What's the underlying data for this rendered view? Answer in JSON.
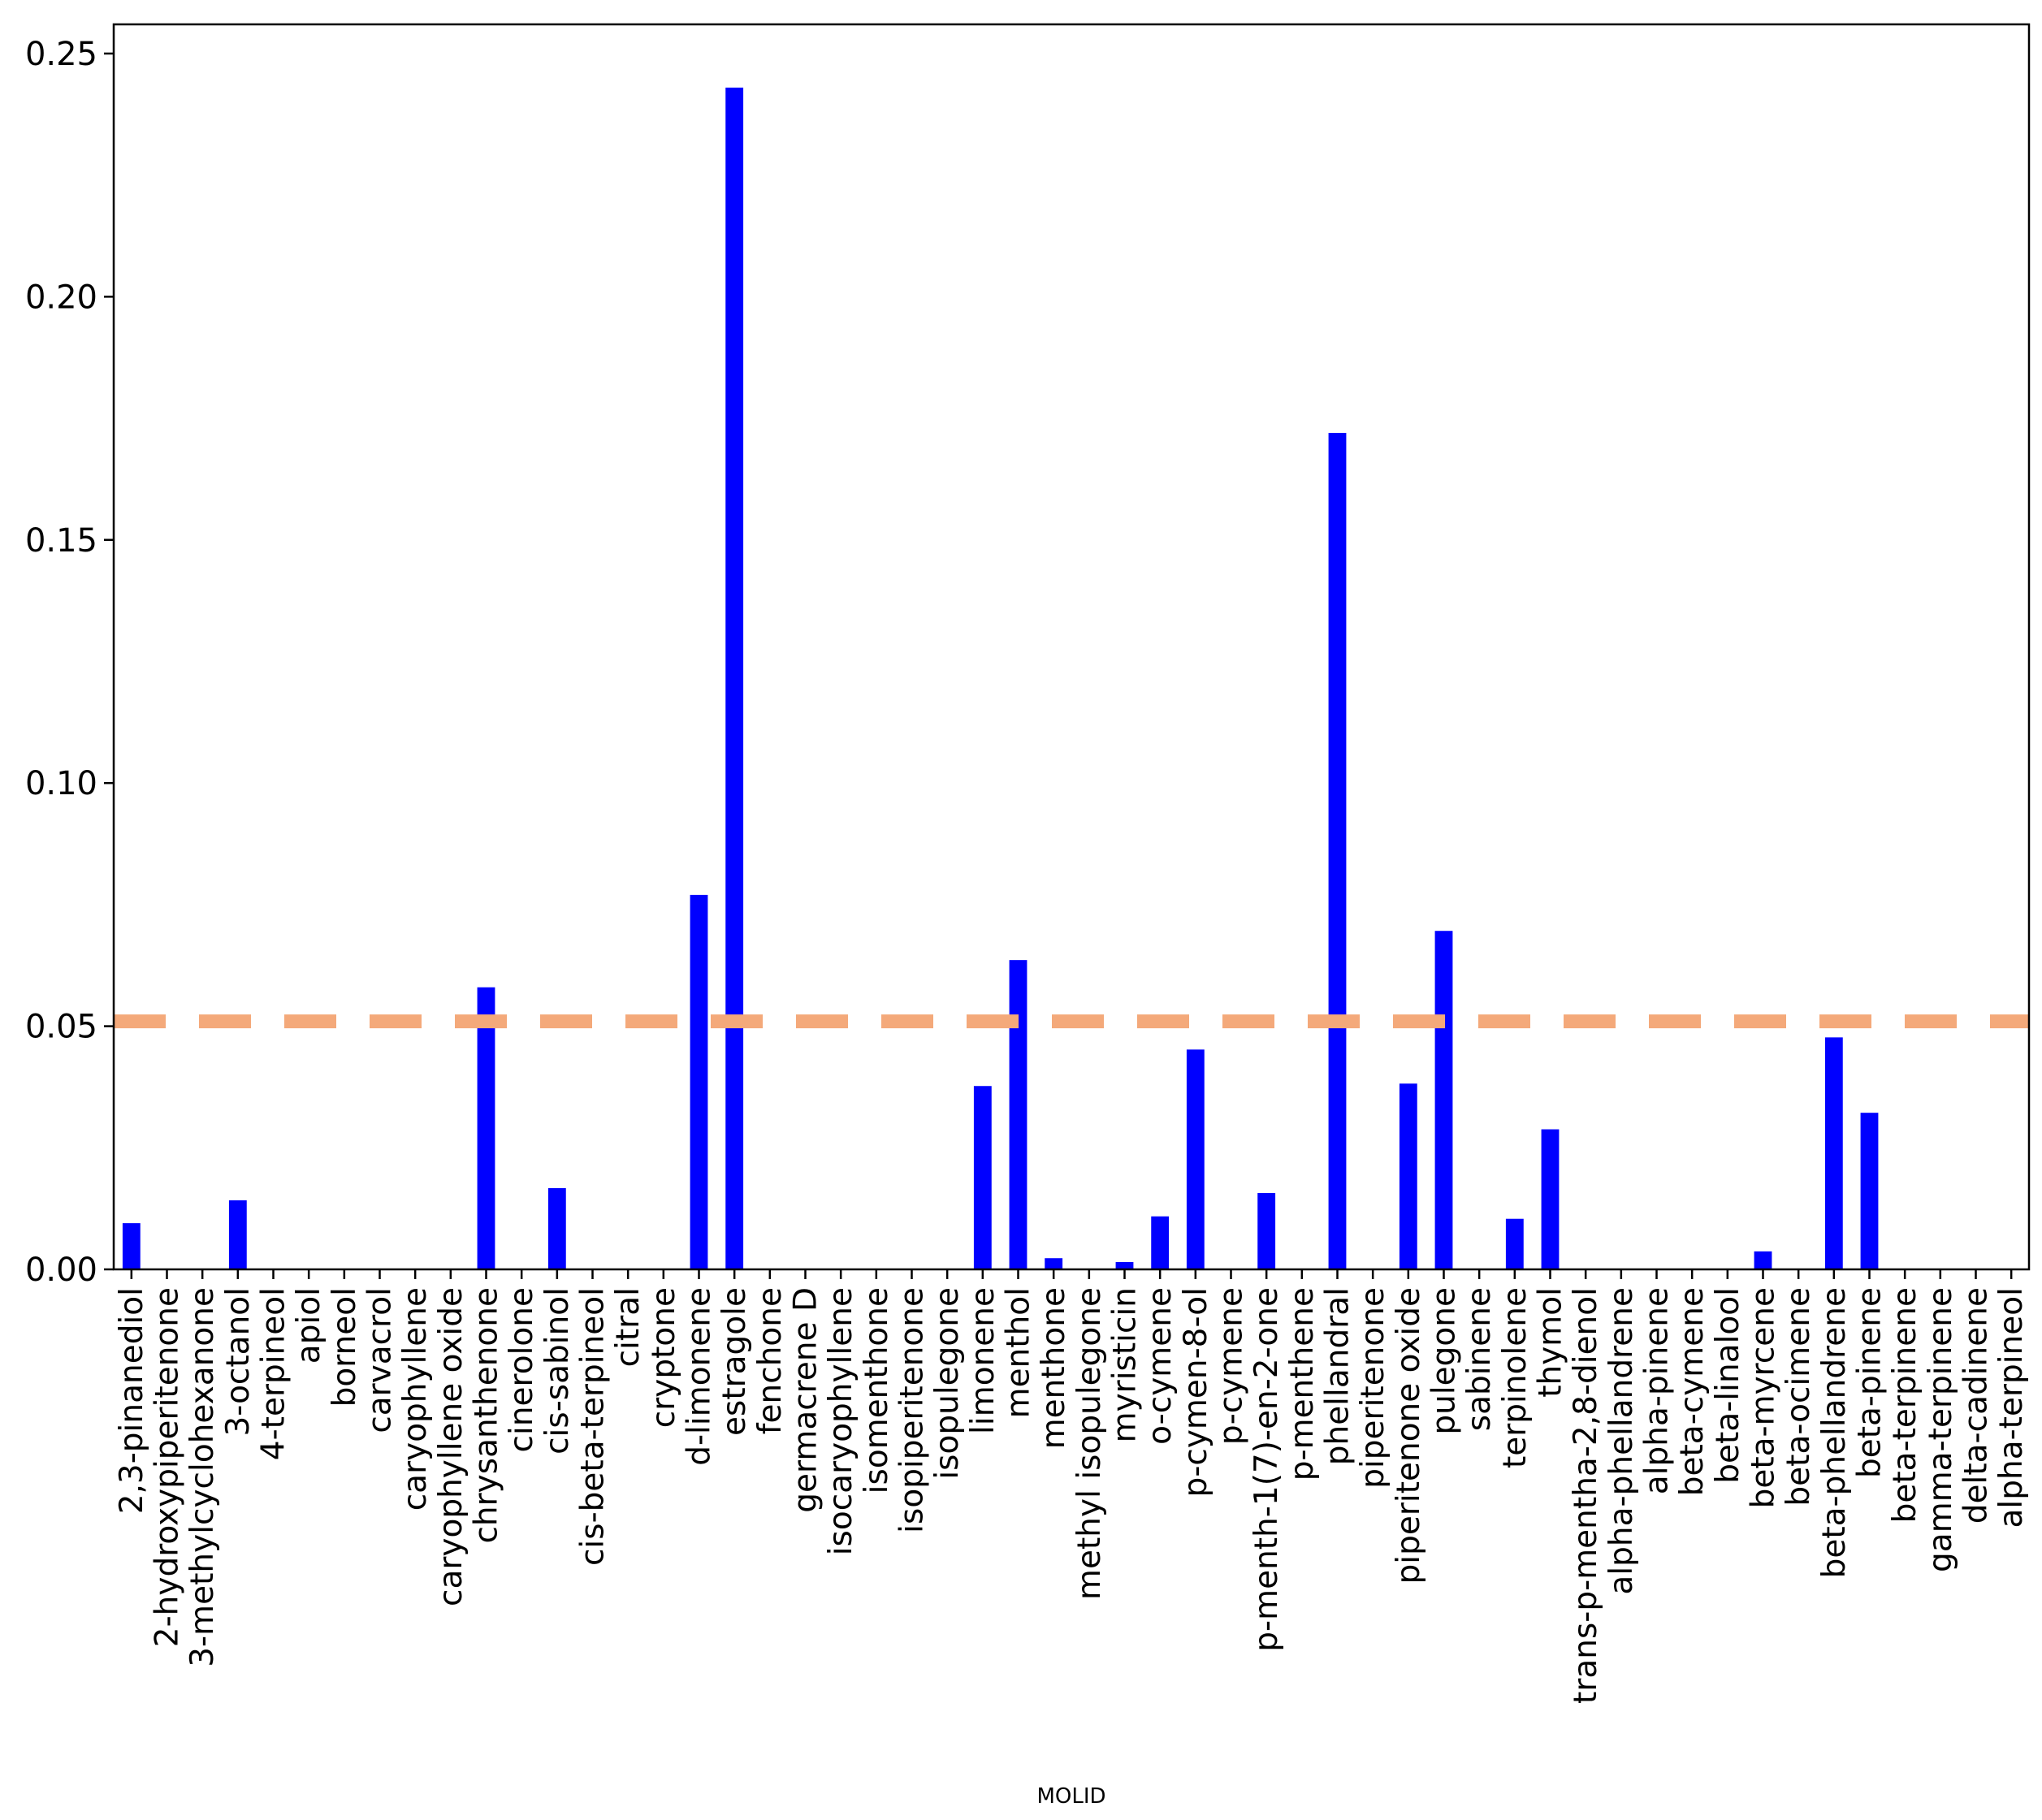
{
  "chart_data": {
    "type": "bar",
    "xlabel": "MOLID",
    "ylabel": "",
    "title": "",
    "ylim": [
      0,
      0.256
    ],
    "yticks": [
      0.0,
      0.05,
      0.1,
      0.15,
      0.2,
      0.25
    ],
    "ytick_labels": [
      "0.00",
      "0.05",
      "0.10",
      "0.15",
      "0.20",
      "0.25"
    ],
    "bar_color": "#0000ff",
    "threshold": {
      "value": 0.051,
      "style": "dashed",
      "color": "#f4a97a"
    },
    "grid": false,
    "legend": "none",
    "categories": [
      "2,3-pinanediol",
      "2-hydroxypiperitenone",
      "3-methylcyclohexanone",
      "3-octanol",
      "4-terpineol",
      "apiol",
      "borneol",
      "carvacrol",
      "caryophyllene",
      "caryophyllene oxide",
      "chrysanthenone",
      "cinerolone",
      "cis-sabinol",
      "cis-beta-terpineol",
      "citral",
      "cryptone",
      "d-limonene",
      "estragole",
      "fenchone",
      "germacrene D",
      "isocaryophyllene",
      "isomenthone",
      "isopiperitenone",
      "isopulegone",
      "limonene",
      "menthol",
      "menthone",
      "methyl isopulegone",
      "myristicin",
      "o-cymene",
      "p-cymen-8-ol",
      "p-cymene",
      "p-menth-1(7)-en-2-one",
      "p-menthene",
      "phellandral",
      "piperitenone",
      "piperitenone oxide",
      "pulegone",
      "sabinene",
      "terpinolene",
      "thymol",
      "trans-p-mentha-2,8-dienol",
      "alpha-phellandrene",
      "alpha-pinene",
      "beta-cymene",
      "beta-linalool",
      "beta-myrcene",
      "beta-ocimene",
      "beta-phellandrene",
      "beta-pinene",
      "beta-terpinene",
      "gamma-terpinene",
      "delta-cadinene",
      "alpha-terpineol"
    ],
    "values": [
      0.0095,
      0,
      0,
      0.0142,
      0,
      0,
      0,
      0,
      0,
      0,
      0.058,
      0,
      0.0167,
      0,
      0,
      0,
      0.077,
      0.243,
      0,
      0,
      0,
      0,
      0,
      0,
      0.0377,
      0.0636,
      0.0023,
      0,
      0.0015,
      0.0109,
      0.0452,
      0,
      0.0157,
      0,
      0.172,
      0,
      0.0382,
      0.0696,
      0,
      0.0104,
      0.0288,
      0,
      0,
      0,
      0,
      0,
      0.0037,
      0,
      0.0477,
      0.0322,
      0,
      0,
      0,
      0
    ]
  }
}
